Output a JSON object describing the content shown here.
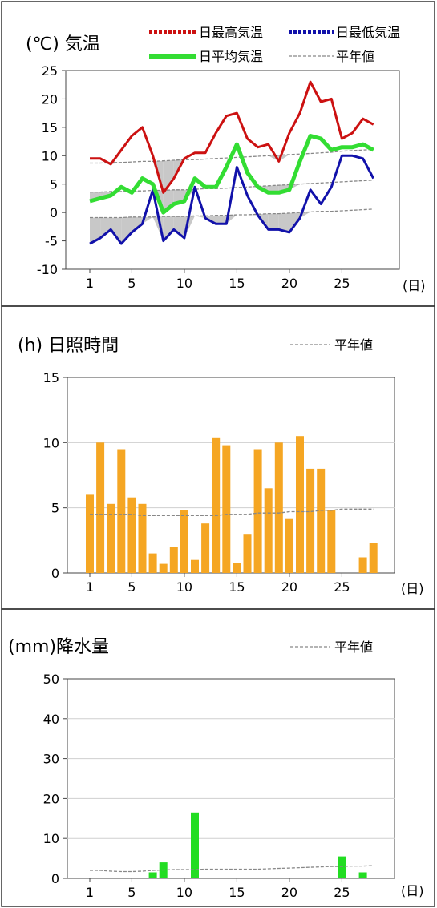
{
  "colors": {
    "max_temp": "#cc1111",
    "min_temp": "#1111aa",
    "avg_temp": "#33dd33",
    "normal": "#888888",
    "sunshine_bar": "#f5a623",
    "precip_bar": "#22dd22",
    "shade": "#c8c8c8"
  },
  "chart_data": [
    {
      "type": "line",
      "title": "(℃) 気温",
      "xlabel": "(日)",
      "x_ticks": [
        "1",
        "5",
        "10",
        "15",
        "20",
        "25"
      ],
      "y_ticks": [
        "25",
        "20",
        "15",
        "10",
        "5",
        "0",
        "-5",
        "-10"
      ],
      "ylim": [
        -10,
        25
      ],
      "xlim": [
        1,
        28
      ],
      "legend": [
        {
          "label": "日最高気温",
          "key": "max"
        },
        {
          "label": "日最低気温",
          "key": "min"
        },
        {
          "label": "日平均気温",
          "key": "avg"
        },
        {
          "label": "平年値",
          "key": "normal"
        }
      ],
      "days": [
        1,
        2,
        3,
        4,
        5,
        6,
        7,
        8,
        9,
        10,
        11,
        12,
        13,
        14,
        15,
        16,
        17,
        18,
        19,
        20,
        21,
        22,
        23,
        24,
        25,
        26,
        27,
        28
      ],
      "series": [
        {
          "key": "max",
          "values": [
            9.5,
            9.5,
            8.5,
            11,
            13.5,
            15,
            10,
            3.5,
            6,
            9.5,
            10.5,
            10.5,
            14,
            17,
            17.5,
            13,
            11.5,
            12,
            9,
            14,
            17.5,
            23,
            19.5,
            20,
            13,
            14,
            16.5,
            15.5
          ]
        },
        {
          "key": "min",
          "values": [
            -5.5,
            -4.5,
            -3,
            -5.5,
            -3.5,
            -2,
            4,
            -5,
            -3,
            -4.5,
            4.5,
            -1,
            -2,
            -2,
            8,
            3,
            -0.5,
            -3,
            -3,
            -3.5,
            -1,
            4,
            1.5,
            4.5,
            10,
            10,
            9.5,
            6
          ]
        },
        {
          "key": "avg",
          "values": [
            2,
            2.5,
            3,
            4.5,
            3.5,
            6,
            5,
            0,
            1.5,
            2,
            6,
            4.5,
            4.5,
            8,
            12,
            7,
            4.5,
            3.5,
            3.5,
            4,
            9,
            13.5,
            13,
            11,
            11.5,
            11.5,
            12,
            11
          ]
        },
        {
          "key": "normal_max",
          "values": [
            8.7,
            8.7,
            8.8,
            8.8,
            8.9,
            9,
            9,
            9.1,
            9.2,
            9.3,
            9.3,
            9.4,
            9.5,
            9.6,
            9.7,
            9.8,
            9.9,
            10,
            10.1,
            10.2,
            10.3,
            10.4,
            10.5,
            10.6,
            10.8,
            10.9,
            11,
            11.1
          ]
        },
        {
          "key": "normal_avg",
          "values": [
            3.6,
            3.6,
            3.7,
            3.7,
            3.8,
            3.8,
            3.9,
            3.9,
            4,
            4,
            4.1,
            4.2,
            4.2,
            4.3,
            4.4,
            4.5,
            4.6,
            4.7,
            4.8,
            4.9,
            5,
            5.1,
            5.2,
            5.3,
            5.4,
            5.5,
            5.6,
            5.7
          ]
        },
        {
          "key": "normal_min",
          "values": [
            -0.9,
            -0.9,
            -0.9,
            -0.9,
            -0.8,
            -0.8,
            -0.8,
            -0.7,
            -0.7,
            -0.7,
            -0.6,
            -0.6,
            -0.5,
            -0.5,
            -0.4,
            -0.4,
            -0.3,
            -0.2,
            -0.2,
            -0.1,
            0,
            0.1,
            0.2,
            0.2,
            0.3,
            0.4,
            0.5,
            0.6
          ]
        }
      ]
    },
    {
      "type": "bar",
      "title": "(h) 日照時間",
      "xlabel": "(日)",
      "x_ticks": [
        "1",
        "5",
        "10",
        "15",
        "20",
        "25"
      ],
      "y_ticks": [
        "15",
        "10",
        "5",
        "0"
      ],
      "ylim": [
        0,
        15
      ],
      "legend": [
        {
          "label": "平年値",
          "key": "normal"
        }
      ],
      "days": [
        1,
        2,
        3,
        4,
        5,
        6,
        7,
        8,
        9,
        10,
        11,
        12,
        13,
        14,
        15,
        16,
        17,
        18,
        19,
        20,
        21,
        22,
        23,
        24,
        25,
        26,
        27,
        28
      ],
      "values": [
        6,
        10,
        5.3,
        9.5,
        5.8,
        5.3,
        1.5,
        0.7,
        2,
        4.8,
        1,
        3.8,
        10.4,
        9.8,
        0.8,
        3,
        9.5,
        6.5,
        10,
        4.2,
        10.5,
        8,
        8,
        4.8,
        0,
        0,
        1.2,
        2.3
      ],
      "normal": [
        4.5,
        4.5,
        4.5,
        4.5,
        4.5,
        4.4,
        4.4,
        4.4,
        4.4,
        4.4,
        4.4,
        4.4,
        4.4,
        4.5,
        4.5,
        4.5,
        4.6,
        4.6,
        4.6,
        4.7,
        4.7,
        4.7,
        4.8,
        4.8,
        4.9,
        4.9,
        4.9,
        4.9
      ]
    },
    {
      "type": "bar",
      "title": "(mm)降水量",
      "xlabel": "(日)",
      "x_ticks": [
        "1",
        "5",
        "10",
        "15",
        "20",
        "25"
      ],
      "y_ticks": [
        "50",
        "40",
        "30",
        "20",
        "10",
        "0"
      ],
      "ylim": [
        0,
        50
      ],
      "legend": [
        {
          "label": "平年値",
          "key": "normal"
        }
      ],
      "days": [
        1,
        2,
        3,
        4,
        5,
        6,
        7,
        8,
        9,
        10,
        11,
        12,
        13,
        14,
        15,
        16,
        17,
        18,
        19,
        20,
        21,
        22,
        23,
        24,
        25,
        26,
        27,
        28
      ],
      "values": [
        0,
        0,
        0,
        0,
        0,
        0,
        1.5,
        4,
        0,
        0,
        16.5,
        0,
        0,
        0,
        0,
        0,
        0,
        0,
        0,
        0,
        0,
        0,
        0,
        0,
        5.5,
        0,
        1.5,
        0
      ],
      "normal": [
        2,
        2,
        1.8,
        1.7,
        1.7,
        1.8,
        2,
        2.1,
        2.2,
        2.2,
        2.2,
        2.3,
        2.3,
        2.3,
        2.3,
        2.3,
        2.3,
        2.4,
        2.5,
        2.6,
        2.7,
        2.8,
        2.9,
        3,
        3,
        3.1,
        3.1,
        3.2
      ]
    }
  ]
}
